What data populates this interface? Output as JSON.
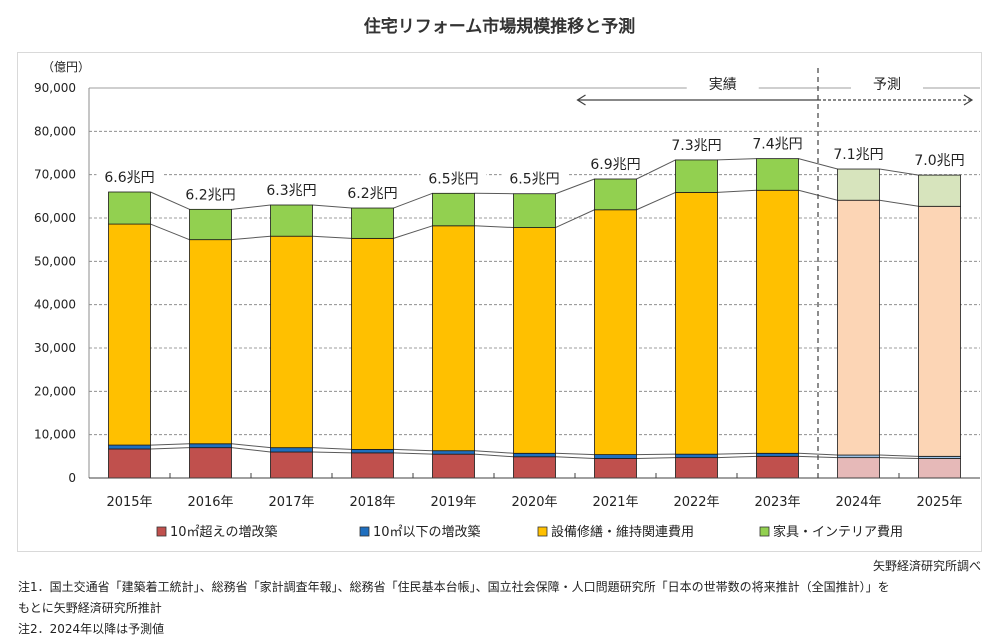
{
  "page": {
    "title": "住宅リフォーム市場規模推移と予測",
    "source": "矢野経済研究所調べ",
    "notes": [
      "注1．国土交通省「建築着工統計」、総務省「家計調査年報」、総務省「住民基本台帳」、国立社会保障・人口問題研究所「日本の世帯数の将来推計（全国推計）」を",
      "もとに矢野経済研究所推計",
      "注2．2024年以降は予測値"
    ]
  },
  "chart_data": {
    "type": "bar",
    "stacked": true,
    "title": "住宅リフォーム市場規模推移と予測",
    "ylabel": "（億円）",
    "xlabel": "",
    "ylim": [
      0,
      90000
    ],
    "yticks": [
      0,
      10000,
      20000,
      30000,
      40000,
      50000,
      60000,
      70000,
      80000,
      90000
    ],
    "ytick_labels": [
      "0",
      "10,000",
      "20,000",
      "30,000",
      "40,000",
      "50,000",
      "60,000",
      "70,000",
      "80,000",
      "90,000"
    ],
    "grid": true,
    "legend_position": "bottom",
    "categories": [
      "2015年",
      "2016年",
      "2017年",
      "2018年",
      "2019年",
      "2020年",
      "2021年",
      "2022年",
      "2023年",
      "2024年",
      "2025年"
    ],
    "forecast_from_index": 9,
    "series": [
      {
        "name": "10㎡超えの増改築",
        "color": "#c0504d",
        "forecast_color": "#e6b9b8",
        "values": [
          6700,
          7000,
          6000,
          5800,
          5500,
          4900,
          4500,
          4700,
          5000,
          4700,
          4500
        ]
      },
      {
        "name": "10㎡以下の増改築",
        "color": "#1f6fbf",
        "forecast_color": "#9dc3e6",
        "values": [
          900,
          900,
          1000,
          800,
          800,
          800,
          900,
          800,
          700,
          600,
          500
        ]
      },
      {
        "name": "設備修繕・維持関連費用",
        "color": "#ffc000",
        "forecast_color": "#fcd5b5",
        "values": [
          51000,
          47100,
          48800,
          48700,
          51900,
          52100,
          56500,
          60400,
          60700,
          58800,
          57700
        ]
      },
      {
        "name": "家具・インテリア費用",
        "color": "#92d050",
        "forecast_color": "#d7e4bd",
        "values": [
          7400,
          7000,
          7200,
          7000,
          7500,
          7800,
          7100,
          7500,
          7300,
          7200,
          7200
        ]
      }
    ],
    "totals_labels": [
      "6.6兆円",
      "6.2兆円",
      "6.3兆円",
      "6.2兆円",
      "6.5兆円",
      "6.5兆円",
      "6.9兆円",
      "7.3兆円",
      "7.4兆円",
      "7.1兆円",
      "7.0兆円"
    ],
    "annotations": {
      "actual_label": "実績",
      "forecast_label": "予測"
    }
  }
}
